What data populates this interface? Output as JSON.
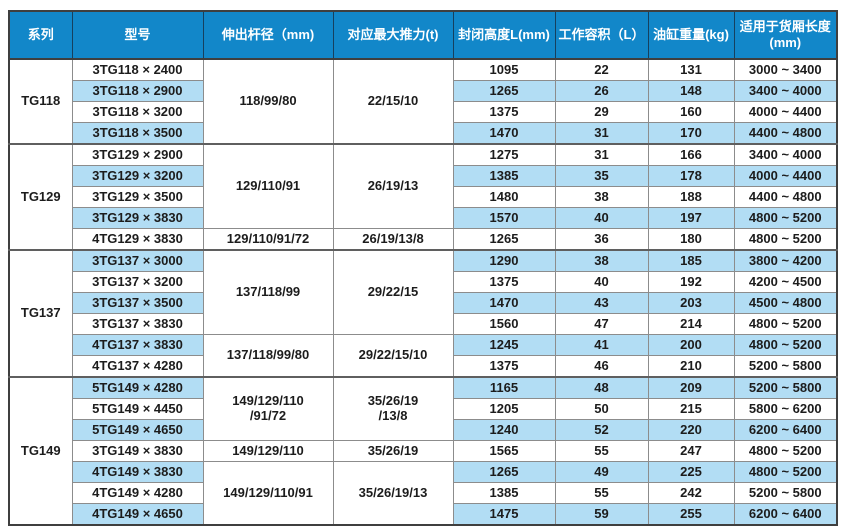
{
  "colors": {
    "header_bg": "#1287c9",
    "header_text": "#ffffff",
    "stripe_bg": "#b2ddf4",
    "row_bg": "#ffffff",
    "grid_line": "#8c8c8c",
    "outer_line": "#3f3f3f",
    "text": "#1c1c1c"
  },
  "table": {
    "headers": [
      "系列",
      "型号",
      "伸出杆径（mm)",
      "对应最大推力(t)",
      "封闭高度L(mm)",
      "工作容积（L）",
      "油缸重量(kg)",
      "适用于货厢长度\n(mm)"
    ],
    "groups": [
      {
        "series": "TG118",
        "specs": [
          {
            "span": 4,
            "rod": "118/99/80",
            "thrust": "22/15/10"
          }
        ],
        "rows": [
          {
            "model": "3TG118 × 2400",
            "closed_height": "1095",
            "volume": "22",
            "weight": "131",
            "box_length": "3000 ~ 3400"
          },
          {
            "model": "3TG118 × 2900",
            "closed_height": "1265",
            "volume": "26",
            "weight": "148",
            "box_length": "3400 ~ 4000"
          },
          {
            "model": "3TG118 × 3200",
            "closed_height": "1375",
            "volume": "29",
            "weight": "160",
            "box_length": "4000 ~ 4400"
          },
          {
            "model": "3TG118 × 3500",
            "closed_height": "1470",
            "volume": "31",
            "weight": "170",
            "box_length": "4400 ~ 4800"
          }
        ]
      },
      {
        "series": "TG129",
        "specs": [
          {
            "span": 4,
            "rod": "129/110/91",
            "thrust": "26/19/13"
          },
          {
            "span": 1,
            "rod": "129/110/91/72",
            "thrust": "26/19/13/8"
          }
        ],
        "rows": [
          {
            "model": "3TG129 × 2900",
            "closed_height": "1275",
            "volume": "31",
            "weight": "166",
            "box_length": "3400 ~ 4000"
          },
          {
            "model": "3TG129 × 3200",
            "closed_height": "1385",
            "volume": "35",
            "weight": "178",
            "box_length": "4000 ~ 4400"
          },
          {
            "model": "3TG129 × 3500",
            "closed_height": "1480",
            "volume": "38",
            "weight": "188",
            "box_length": "4400 ~ 4800"
          },
          {
            "model": "3TG129 × 3830",
            "closed_height": "1570",
            "volume": "40",
            "weight": "197",
            "box_length": "4800 ~ 5200"
          },
          {
            "model": "4TG129 × 3830",
            "closed_height": "1265",
            "volume": "36",
            "weight": "180",
            "box_length": "4800 ~ 5200"
          }
        ]
      },
      {
        "series": "TG137",
        "specs": [
          {
            "span": 4,
            "rod": "137/118/99",
            "thrust": "29/22/15"
          },
          {
            "span": 2,
            "rod": "137/118/99/80",
            "thrust": "29/22/15/10"
          }
        ],
        "rows": [
          {
            "model": "3TG137 × 3000",
            "closed_height": "1290",
            "volume": "38",
            "weight": "185",
            "box_length": "3800 ~ 4200"
          },
          {
            "model": "3TG137 × 3200",
            "closed_height": "1375",
            "volume": "40",
            "weight": "192",
            "box_length": "4200 ~ 4500"
          },
          {
            "model": "3TG137 × 3500",
            "closed_height": "1470",
            "volume": "43",
            "weight": "203",
            "box_length": "4500 ~ 4800"
          },
          {
            "model": "3TG137 × 3830",
            "closed_height": "1560",
            "volume": "47",
            "weight": "214",
            "box_length": "4800 ~ 5200"
          },
          {
            "model": "4TG137 × 3830",
            "closed_height": "1245",
            "volume": "41",
            "weight": "200",
            "box_length": "4800 ~ 5200"
          },
          {
            "model": "4TG137 × 4280",
            "closed_height": "1375",
            "volume": "46",
            "weight": "210",
            "box_length": "5200 ~ 5800"
          }
        ]
      },
      {
        "series": "TG149",
        "specs": [
          {
            "span": 3,
            "rod": "149/129/110\n/91/72",
            "thrust": "35/26/19\n/13/8"
          },
          {
            "span": 1,
            "rod": "149/129/110",
            "thrust": "35/26/19"
          },
          {
            "span": 3,
            "rod": "149/129/110/91",
            "thrust": "35/26/19/13"
          }
        ],
        "rows": [
          {
            "model": "5TG149 × 4280",
            "closed_height": "1165",
            "volume": "48",
            "weight": "209",
            "box_length": "5200 ~ 5800"
          },
          {
            "model": "5TG149 × 4450",
            "closed_height": "1205",
            "volume": "50",
            "weight": "215",
            "box_length": "5800 ~ 6200"
          },
          {
            "model": "5TG149 × 4650",
            "closed_height": "1240",
            "volume": "52",
            "weight": "220",
            "box_length": "6200 ~ 6400"
          },
          {
            "model": "3TG149 × 3830",
            "closed_height": "1565",
            "volume": "55",
            "weight": "247",
            "box_length": "4800 ~ 5200"
          },
          {
            "model": "4TG149 × 3830",
            "closed_height": "1265",
            "volume": "49",
            "weight": "225",
            "box_length": "4800 ~ 5200"
          },
          {
            "model": "4TG149 × 4280",
            "closed_height": "1385",
            "volume": "55",
            "weight": "242",
            "box_length": "5200 ~ 5800"
          },
          {
            "model": "4TG149 × 4650",
            "closed_height": "1475",
            "volume": "59",
            "weight": "255",
            "box_length": "6200 ~ 6400"
          }
        ]
      }
    ]
  }
}
